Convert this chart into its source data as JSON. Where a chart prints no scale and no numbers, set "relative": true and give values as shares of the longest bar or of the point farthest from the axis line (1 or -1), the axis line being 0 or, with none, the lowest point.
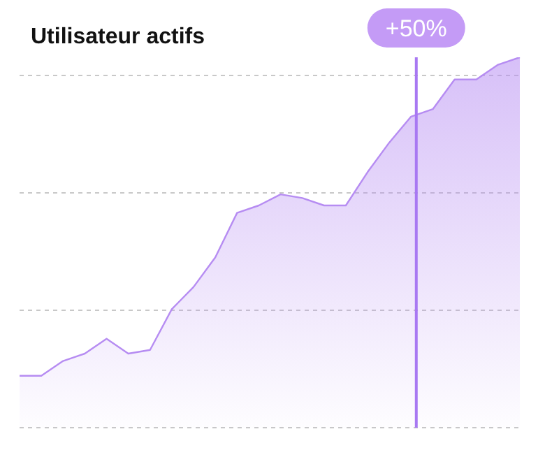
{
  "chart_data": {
    "type": "area",
    "title": "Utilisateur actifs",
    "relative": true,
    "categories": [
      null,
      null,
      null,
      null,
      null,
      null,
      null,
      null,
      null,
      null,
      null,
      null,
      null,
      null,
      null,
      null,
      null,
      null,
      null,
      null,
      null,
      null,
      null,
      null
    ],
    "tick_labels": false,
    "grid": "y",
    "legend": false,
    "series": [
      {
        "color": "#b68cf2",
        "values": [
          0.14,
          0.14,
          0.18,
          0.2,
          0.24,
          0.2,
          0.21,
          0.32,
          0.38,
          0.46,
          0.58,
          0.6,
          0.63,
          0.62,
          0.6,
          0.6,
          0.69,
          0.77,
          0.84,
          0.86,
          0.94,
          0.94,
          0.98,
          1
        ]
      }
    ],
    "annotations": [
      "+50%"
    ]
  }
}
